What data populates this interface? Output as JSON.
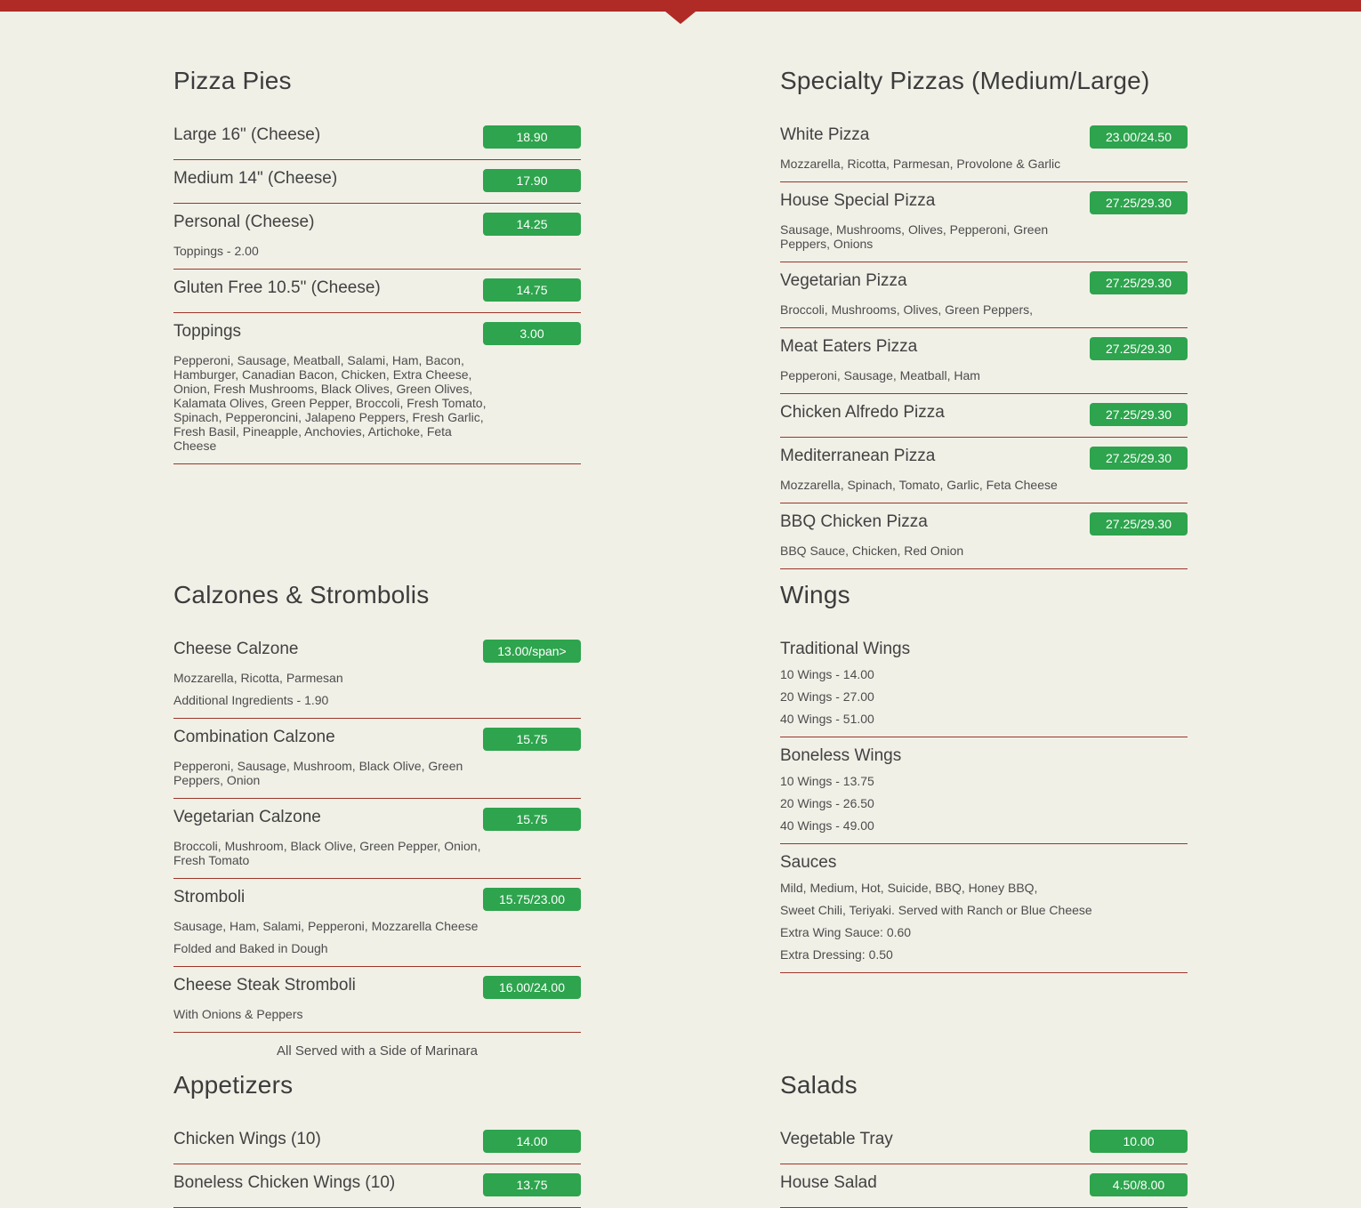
{
  "theme": {
    "background": "#f1f0e7",
    "top_bar_red": "#b02b26",
    "divider_red": "#9c3529",
    "badge_green": "#2da44d",
    "heading_text": "#3c3c3c",
    "item_text": "#414141",
    "description_text": "#4c4c4c"
  },
  "header": {
    "pointer_icon": "down-arrow"
  },
  "menu": {
    "sections": [
      {
        "id": "pizza-pies",
        "title": "Pizza Pies",
        "column": "left",
        "row": 0,
        "items": [
          {
            "name": "Large 16\" (Cheese)",
            "price": "18.90",
            "descriptions": []
          },
          {
            "name": "Medium 14\" (Cheese)",
            "price": "17.90",
            "descriptions": []
          },
          {
            "name": "Personal (Cheese)",
            "price": "14.25",
            "descriptions": [
              "Toppings - 2.00"
            ]
          },
          {
            "name": "Gluten Free 10.5\" (Cheese)",
            "price": "14.75",
            "descriptions": []
          },
          {
            "name": "Toppings",
            "price": "3.00",
            "descriptions": [
              "Pepperoni, Sausage, Meatball, Salami, Ham, Bacon, Hamburger, Canadian Bacon, Chicken, Extra Cheese, Onion, Fresh Mushrooms, Black Olives, Green Olives, Kalamata Olives, Green Pepper, Broccoli, Fresh Tomato, Spinach, Pepperoncini, Jalapeno Peppers, Fresh Garlic, Fresh Basil, Pineapple, Anchovies, Artichoke, Feta Cheese"
            ]
          }
        ],
        "footnote": null
      },
      {
        "id": "specialty-pizzas",
        "title": "Specialty Pizzas (Medium/Large)",
        "column": "right",
        "row": 0,
        "items": [
          {
            "name": "White Pizza",
            "price": "23.00/24.50",
            "descriptions": [
              "Mozzarella, Ricotta, Parmesan, Provolone & Garlic"
            ]
          },
          {
            "name": "House Special Pizza",
            "price": "27.25/29.30",
            "descriptions": [
              "Sausage, Mushrooms, Olives, Pepperoni, Green Peppers, Onions"
            ]
          },
          {
            "name": "Vegetarian Pizza",
            "price": "27.25/29.30",
            "descriptions": [
              "Broccoli, Mushrooms, Olives, Green Peppers,"
            ]
          },
          {
            "name": "Meat Eaters Pizza",
            "price": "27.25/29.30",
            "descriptions": [
              "Pepperoni, Sausage, Meatball, Ham"
            ]
          },
          {
            "name": "Chicken Alfredo Pizza",
            "price": "27.25/29.30",
            "descriptions": []
          },
          {
            "name": "Mediterranean Pizza",
            "price": "27.25/29.30",
            "descriptions": [
              "Mozzarella, Spinach, Tomato, Garlic, Feta Cheese"
            ]
          },
          {
            "name": "BBQ Chicken Pizza",
            "price": "27.25/29.30",
            "descriptions": [
              "BBQ Sauce, Chicken, Red Onion"
            ]
          }
        ],
        "footnote": null
      },
      {
        "id": "calzones-strombolis",
        "title": "Calzones & Strombolis",
        "column": "left",
        "row": 1,
        "items": [
          {
            "name": "Cheese Calzone",
            "price": "13.00/span>",
            "descriptions": [
              "Mozzarella, Ricotta, Parmesan",
              "Additional Ingredients - 1.90"
            ]
          },
          {
            "name": "Combination Calzone",
            "price": "15.75",
            "descriptions": [
              "Pepperoni, Sausage, Mushroom, Black Olive, Green Peppers, Onion"
            ]
          },
          {
            "name": "Vegetarian Calzone",
            "price": "15.75",
            "descriptions": [
              "Broccoli, Mushroom, Black Olive, Green Pepper, Onion, Fresh Tomato"
            ]
          },
          {
            "name": "Stromboli",
            "price": "15.75/23.00",
            "descriptions": [
              "Sausage, Ham, Salami, Pepperoni, Mozzarella Cheese",
              "Folded and Baked in Dough"
            ]
          },
          {
            "name": "Cheese Steak Stromboli",
            "price": "16.00/24.00",
            "descriptions": [
              "With Onions & Peppers"
            ]
          }
        ],
        "footnote": "All Served with a Side of Marinara"
      },
      {
        "id": "wings",
        "title": "Wings",
        "column": "right",
        "row": 1,
        "items": [
          {
            "name": "Traditional Wings",
            "price": null,
            "descriptions": [
              "10 Wings - 14.00",
              "20 Wings - 27.00",
              "40 Wings - 51.00"
            ]
          },
          {
            "name": "Boneless Wings",
            "price": null,
            "descriptions": [
              "10 Wings - 13.75",
              "20 Wings - 26.50",
              "40 Wings - 49.00"
            ]
          },
          {
            "name": "Sauces",
            "price": null,
            "descriptions": [
              "Mild, Medium, Hot, Suicide, BBQ, Honey BBQ,",
              "Sweet Chili, Teriyaki. Served with Ranch or Blue Cheese",
              "Extra Wing Sauce: 0.60",
              "Extra Dressing: 0.50"
            ]
          }
        ],
        "footnote": null
      },
      {
        "id": "appetizers",
        "title": "Appetizers",
        "column": "left",
        "row": 2,
        "items": [
          {
            "name": "Chicken Wings (10)",
            "price": "14.00",
            "descriptions": []
          },
          {
            "name": "Boneless Chicken Wings (10)",
            "price": "13.75",
            "descriptions": []
          }
        ],
        "footnote": null
      },
      {
        "id": "salads",
        "title": "Salads",
        "column": "right",
        "row": 2,
        "items": [
          {
            "name": "Vegetable Tray",
            "price": "10.00",
            "descriptions": []
          },
          {
            "name": "House Salad",
            "price": "4.50/8.00",
            "descriptions": []
          }
        ],
        "footnote": null
      }
    ]
  }
}
